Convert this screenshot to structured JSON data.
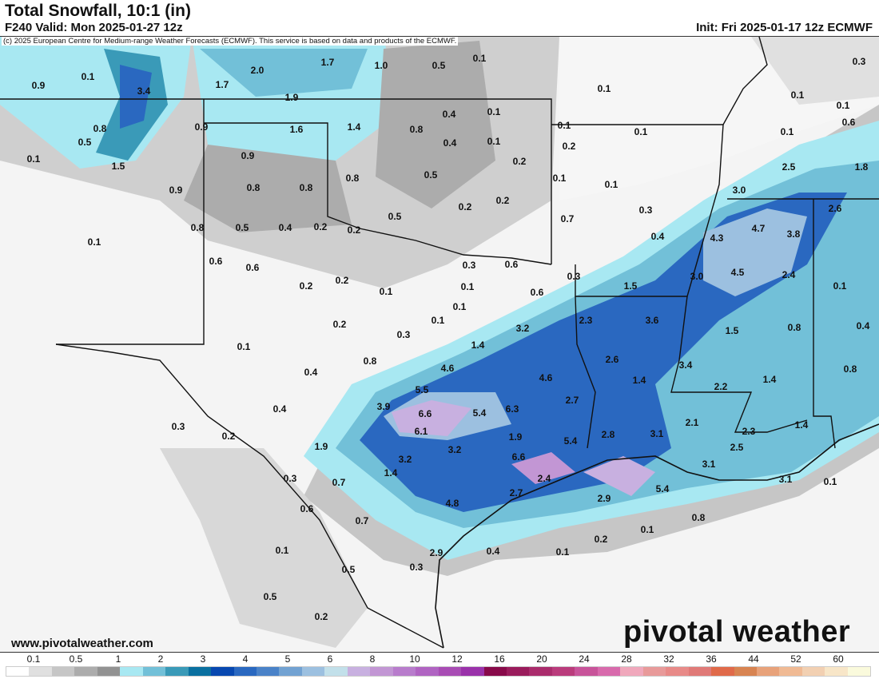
{
  "header": {
    "title": "Total Snowfall, 10:1 (in)",
    "valid": "F240 Valid: Mon 2025-01-27 12z",
    "init": "Init: Fri 2025-01-17 12z ECMWF",
    "copyright": "(c) 2025 European Centre for Medium-range Weather Forecasts (ECMWF). This service is based on data and products of the ECMWF."
  },
  "footer": {
    "site": "www.pivotalweather.com",
    "logo": "pivotal weather"
  },
  "colorbar": {
    "ticks": [
      "0.1",
      "0.5",
      "1",
      "2",
      "3",
      "4",
      "5",
      "6",
      "8",
      "10",
      "12",
      "16",
      "20",
      "24",
      "28",
      "32",
      "36",
      "44",
      "52",
      "60"
    ],
    "colors": [
      "#ffffff",
      "#e0e0e0",
      "#c6c6c6",
      "#acacac",
      "#929292",
      "#a8e8f2",
      "#72c0d8",
      "#3a9ab8",
      "#0a70a0",
      "#0848b0",
      "#2a68c0",
      "#4a82c8",
      "#72a2d2",
      "#9cc0e0",
      "#c2e0ea",
      "#c8b0e0",
      "#c296d4",
      "#b87ccc",
      "#b064c2",
      "#a84cb4",
      "#9a32aa",
      "#880a4a",
      "#9a1c5c",
      "#aa2c6c",
      "#ba3c7c",
      "#c8549a",
      "#d86aac",
      "#f0a8bc",
      "#e89a9a",
      "#e88a88",
      "#e07a78",
      "#e06a4a",
      "#d88452",
      "#e8a27a",
      "#f0ba94",
      "#f2d0b2",
      "#f8e6c8",
      "#fafadc"
    ]
  },
  "map_labels": [
    "0.1",
    "0.9",
    "0.1",
    "3.4",
    "2.0",
    "1.7",
    "1.0",
    "0.5",
    "1.7",
    "1.9",
    "0.3",
    "0.1",
    "0.1",
    "0.1",
    "0.9",
    "1.6",
    "1.4",
    "0.8",
    "0.4",
    "0.1",
    "0.8",
    "0.1",
    "0.1",
    "0.1",
    "0.6",
    "0.4",
    "0.1",
    "0.2",
    "0.1",
    "0.5",
    "1.5",
    "0.9",
    "0.8",
    "0.5",
    "0.2",
    "2.5",
    "1.8",
    "0.9",
    "0.8",
    "0.8",
    "0.1",
    "0.1",
    "0.2",
    "0.2",
    "3.0",
    "2.6",
    "0.8",
    "0.5",
    "0.4",
    "0.2",
    "0.2",
    "0.5",
    "0.7",
    "0.3",
    "4.7",
    "3.8",
    "4.3",
    "0.4",
    "0.1",
    "0.6",
    "0.6",
    "0.3",
    "0.6",
    "0.3",
    "4.5",
    "3.0",
    "2.4",
    "0.2",
    "0.2",
    "0.1",
    "0.1",
    "0.6",
    "1.5",
    "0.1",
    "0.1",
    "0.1",
    "0.2",
    "0.3",
    "2.3",
    "3.6",
    "1.5",
    "0.8",
    "0.4",
    "3.2",
    "1.4",
    "0.1",
    "0.8",
    "2.6",
    "4.6",
    "4.6",
    "3.4",
    "0.4",
    "1.4",
    "2.2",
    "1.4",
    "0.8",
    "5.5",
    "2.7",
    "3.9",
    "6.6",
    "5.4",
    "6.3",
    "0.4",
    "2.1",
    "1.4",
    "0.3",
    "0.2",
    "6.1",
    "1.9",
    "5.4",
    "2.8",
    "3.1",
    "2.3",
    "2.5",
    "1.9",
    "3.2",
    "3.2",
    "6.6",
    "3.1",
    "3.1",
    "0.1",
    "1.4",
    "2.4",
    "0.3",
    "0.7",
    "2.7",
    "5.4",
    "4.8",
    "2.9",
    "0.6",
    "0.7",
    "0.1",
    "0.8",
    "0.2",
    "0.1",
    "0.4",
    "0.1",
    "2.9",
    "0.5",
    "0.3",
    "0.5",
    "0.2"
  ]
}
